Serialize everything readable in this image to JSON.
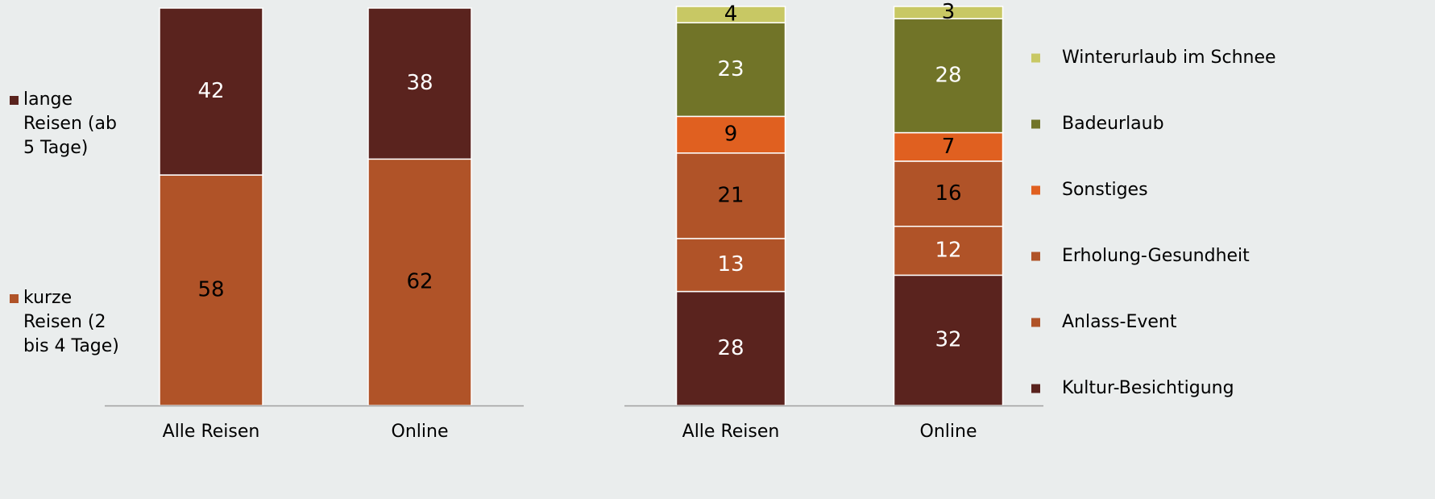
{
  "chart_data": [
    {
      "type": "stacked_bar",
      "categories": [
        "Alle Reisen",
        "Online"
      ],
      "ylim": [
        0,
        100
      ],
      "legend": "left",
      "series": [
        {
          "name": "kurze Reisen (2 bis 4 Tage)",
          "color": "#b05328",
          "label_color": "#000000",
          "values": [
            58,
            62
          ]
        },
        {
          "name": "lange Reisen (ab 5 Tage)",
          "color": "#5a231e",
          "label_color": "#ffffff",
          "values": [
            42,
            38
          ]
        }
      ]
    },
    {
      "type": "stacked_bar",
      "categories": [
        "Alle Reisen",
        "Online"
      ],
      "ylim": [
        0,
        98
      ],
      "legend": "right",
      "series": [
        {
          "name": "Kultur-Besichtigung",
          "color": "#5a231e",
          "label_color": "#ffffff",
          "values": [
            28,
            32
          ]
        },
        {
          "name": "Anlass-Event",
          "color": "#b05328",
          "label_color": "#ffffff",
          "values": [
            13,
            12
          ]
        },
        {
          "name": "Erholung-Gesundheit",
          "color": "#b05328",
          "label_color": "#000000",
          "values": [
            21,
            16
          ]
        },
        {
          "name": "Sonstiges",
          "color": "#e06020",
          "label_color": "#000000",
          "values": [
            9,
            7
          ]
        },
        {
          "name": "Badeurlaub",
          "color": "#717428",
          "label_color": "#ffffff",
          "values": [
            23,
            28
          ]
        },
        {
          "name": "Winterurlaub im Schnee",
          "color": "#c8c864",
          "label_color": "#000000",
          "values": [
            4,
            3
          ]
        }
      ]
    }
  ]
}
